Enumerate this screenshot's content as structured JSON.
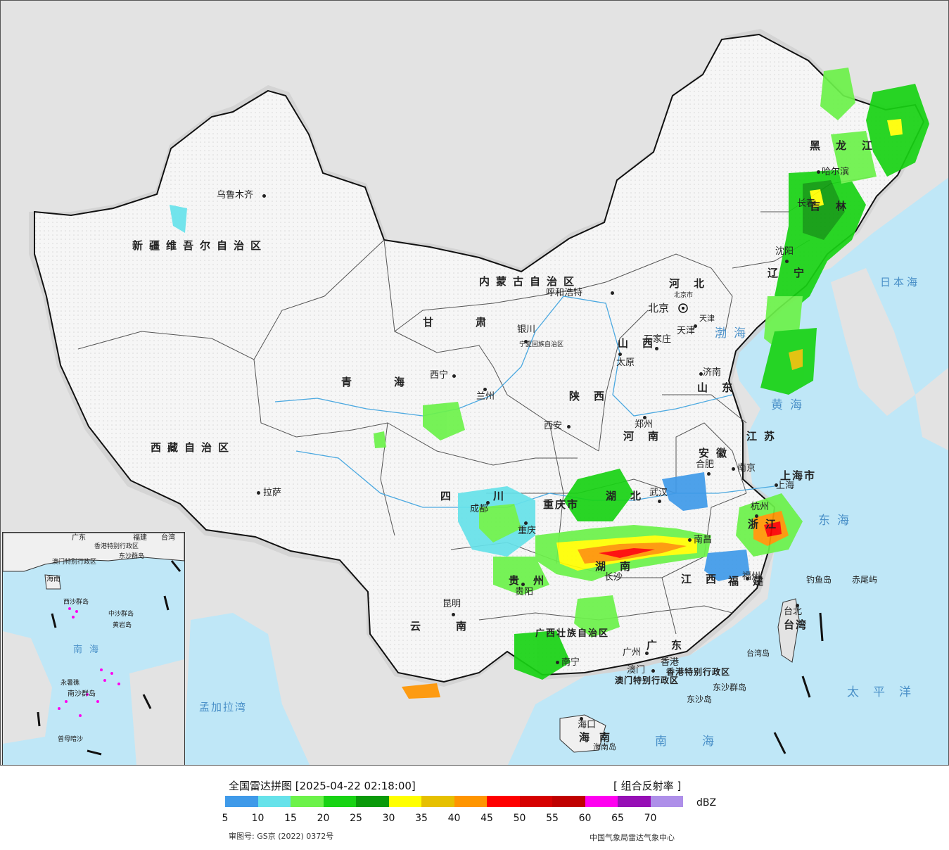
{
  "map": {
    "provinces": [
      {
        "name": "新疆维吾尔自治区"
      },
      {
        "name": "西藏自治区"
      },
      {
        "name": "青海"
      },
      {
        "name": "甘肃"
      },
      {
        "name": "四川"
      },
      {
        "name": "云南"
      },
      {
        "name": "内蒙古自治区"
      },
      {
        "name": "黑龙江"
      },
      {
        "name": "吉林"
      },
      {
        "name": "辽宁"
      },
      {
        "name": "河北"
      },
      {
        "name": "山西"
      },
      {
        "name": "陕西"
      },
      {
        "name": "河南"
      },
      {
        "name": "山东"
      },
      {
        "name": "江苏"
      },
      {
        "name": "安徽"
      },
      {
        "name": "浙江"
      },
      {
        "name": "湖北"
      },
      {
        "name": "湖南"
      },
      {
        "name": "江西"
      },
      {
        "name": "福建"
      },
      {
        "name": "广东"
      },
      {
        "name": "广西壮族自治区"
      },
      {
        "name": "贵州"
      },
      {
        "name": "重庆市"
      },
      {
        "name": "上海市"
      },
      {
        "name": "海南"
      },
      {
        "name": "台湾"
      },
      {
        "name": "宁夏回族自治区"
      },
      {
        "name": "北京市"
      },
      {
        "name": "天津"
      },
      {
        "name": "香港特别行政区"
      },
      {
        "name": "澳门特别行政区"
      }
    ],
    "cities": [
      "乌鲁木齐",
      "拉萨",
      "西宁",
      "兰州",
      "银川",
      "呼和浩特",
      "西安",
      "成都",
      "重庆",
      "昆明",
      "贵阳",
      "南宁",
      "广州",
      "香港",
      "澳门",
      "海口",
      "长沙",
      "武汉",
      "南昌",
      "福州",
      "杭州",
      "上海",
      "南京",
      "合肥",
      "郑州",
      "济南",
      "石家庄",
      "太原",
      "北京",
      "天津",
      "沈阳",
      "长春",
      "哈尔滨",
      "台北"
    ],
    "seas": [
      "渤海",
      "黄海",
      "东海",
      "南海",
      "太平洋",
      "日本海",
      "孟加拉湾"
    ],
    "islands": [
      "钓鱼岛",
      "赤尾屿",
      "台湾岛",
      "东沙群岛",
      "东沙岛",
      "海南岛"
    ],
    "inset": {
      "labels": [
        "广东",
        "福建",
        "台湾",
        "香港特别行政区",
        "澳门特别行政区",
        "东沙群岛",
        "海南",
        "西沙群岛",
        "中沙群岛",
        "黄岩岛",
        "南海",
        "南沙群岛",
        "永暑礁",
        "曾母暗沙"
      ]
    }
  },
  "footer": {
    "title": "全国雷达拼图 [2025-04-22 02:18:00]",
    "product": "[ 组合反射率 ]",
    "unit": "dBZ",
    "approval": "审图号: GS京 (2022) 0372号",
    "source": "中国气象局雷达气象中心"
  },
  "legend": {
    "colors": [
      "#3f9ae9",
      "#66e2ea",
      "#6cf24a",
      "#18d314",
      "#0a9a0a",
      "#ffff00",
      "#e6c000",
      "#ff9500",
      "#ff0000",
      "#d60000",
      "#c00000",
      "#ff00f0",
      "#960fb5",
      "#ae8fe9"
    ],
    "ticks": [
      "5",
      "10",
      "15",
      "20",
      "25",
      "30",
      "35",
      "40",
      "45",
      "50",
      "55",
      "60",
      "65",
      "70"
    ]
  }
}
